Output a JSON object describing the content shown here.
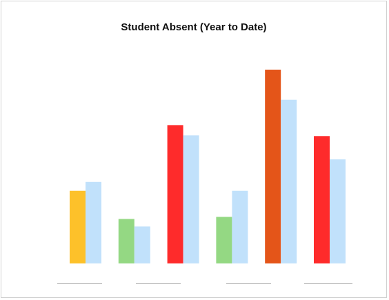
{
  "chart_data": {
    "type": "bar",
    "title": "Student Absent (Year to Date)",
    "xlabel": "",
    "ylabel": "",
    "ylim": [
      0,
      285
    ],
    "legend": "none",
    "grid": false,
    "pairs": [
      {
        "value": 106,
        "color": "#fdc12a",
        "compare": 119,
        "compare_color": "#c1e1fb"
      },
      {
        "value": 65,
        "color": "#94d883",
        "compare": 54,
        "compare_color": "#c1e1fb"
      },
      {
        "value": 202,
        "color": "#fe2b2b",
        "compare": 187,
        "compare_color": "#c1e1fb"
      },
      {
        "value": 68,
        "color": "#94d883",
        "compare": 106,
        "compare_color": "#c1e1fb"
      },
      {
        "value": 283,
        "color": "#e45519",
        "compare": 239,
        "compare_color": "#c1e1fb"
      },
      {
        "value": 186,
        "color": "#fe2b2b",
        "compare": 152,
        "compare_color": "#c1e1fb"
      }
    ],
    "separator_color": "#a6a6a6",
    "separator_count": 4
  }
}
